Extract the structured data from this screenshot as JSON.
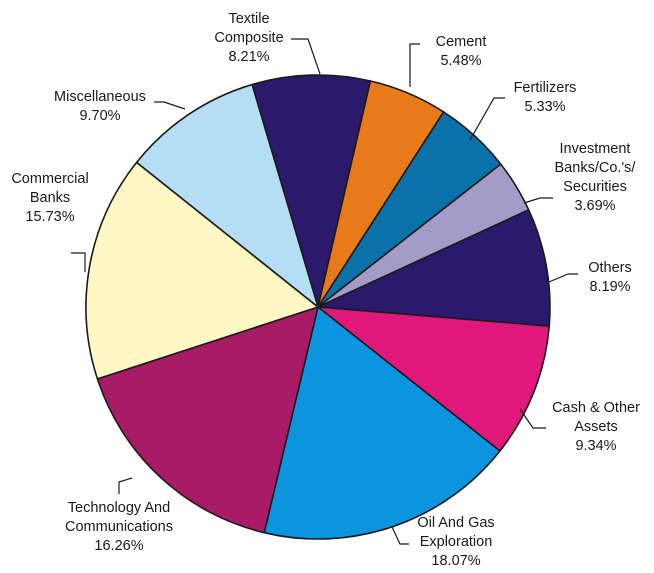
{
  "chart_data": {
    "type": "pie",
    "slices": [
      {
        "label_lines": [
          "Textile",
          "Composite"
        ],
        "value_text": "8.21%",
        "value": 8.21,
        "color": "#2b1a6b"
      },
      {
        "label_lines": [
          "Cement"
        ],
        "value_text": "5.48%",
        "value": 5.48,
        "color": "#e97a1a"
      },
      {
        "label_lines": [
          "Fertilizers"
        ],
        "value_text": "5.33%",
        "value": 5.33,
        "color": "#0a72a8"
      },
      {
        "label_lines": [
          "Investment",
          "Banks/Co.'s/",
          "Securities"
        ],
        "value_text": "3.69%",
        "value": 3.69,
        "color": "#a39cc8"
      },
      {
        "label_lines": [
          "Others"
        ],
        "value_text": "8.19%",
        "value": 8.19,
        "color": "#2b1a6b"
      },
      {
        "label_lines": [
          "Cash & Other",
          "Assets"
        ],
        "value_text": "9.34%",
        "value": 9.34,
        "color": "#e0187c"
      },
      {
        "label_lines": [
          "Oil And Gas",
          "Exploration"
        ],
        "value_text": "18.07%",
        "value": 18.07,
        "color": "#0b95de"
      },
      {
        "label_lines": [
          "Technology And",
          "Communications"
        ],
        "value_text": "16.26%",
        "value": 16.26,
        "color": "#a91b66"
      },
      {
        "label_lines": [
          "Commercial",
          "Banks"
        ],
        "value_text": "15.73%",
        "value": 15.73,
        "color": "#fff8c4"
      },
      {
        "label_lines": [
          "Miscellaneous"
        ],
        "value_text": "9.70%",
        "value": 9.7,
        "color": "#b5ddf4"
      }
    ]
  }
}
